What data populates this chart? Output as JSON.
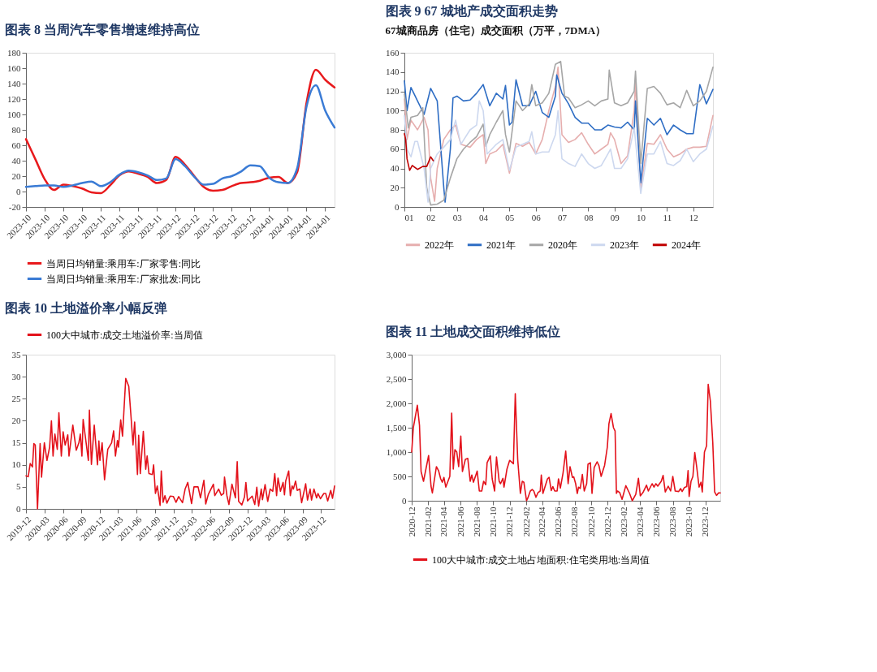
{
  "chart_data": [
    {
      "type": "line",
      "title": "图表 8   当周汽车零售增速维持高位",
      "categories": [
        "2023-10",
        null,
        "2023-10",
        null,
        "2023-10",
        null,
        "2023-10",
        null,
        "2023-11",
        null,
        "2023-11",
        null,
        "2023-11",
        null,
        "2023-11",
        null,
        "2023-12",
        null,
        "2023-12",
        null,
        "2023-12",
        null,
        "2023-12",
        null,
        "2023-12",
        null,
        "2024-01",
        null,
        "2024-01",
        null,
        "2024-01",
        null,
        "2024-01",
        null
      ],
      "series": [
        {
          "name": "当周日均销量:乘用车:厂家零售:同比",
          "color": "#e8191c",
          "values": [
            68,
            42,
            16,
            2,
            9,
            7,
            4,
            -1,
            -2,
            8,
            21,
            26,
            23,
            19,
            11,
            15,
            45,
            35,
            20,
            6,
            1,
            2,
            7,
            11,
            12,
            14,
            18,
            19,
            11,
            25,
            115,
            158,
            145,
            135
          ]
        },
        {
          "name": "当周日均销量:乘用车:厂家批发:同比",
          "color": "#3a7bd5",
          "values": [
            6,
            7,
            8,
            8,
            6,
            8,
            11,
            13,
            7,
            12,
            22,
            27,
            25,
            21,
            15,
            17,
            42,
            33,
            19,
            9,
            10,
            17,
            20,
            26,
            34,
            33,
            18,
            12,
            11,
            30,
            110,
            138,
            105,
            83
          ]
        }
      ],
      "ylim": [
        -20,
        180
      ],
      "yticks": [
        -20,
        0,
        20,
        40,
        60,
        80,
        100,
        120,
        140,
        160,
        180
      ],
      "grid": false,
      "legend": "bottom"
    },
    {
      "type": "line",
      "title": "图表 9   67 城地产成交面积走势",
      "subtitle": "67城商品房（住宅）成交面积（万平，7DMA）",
      "series": [
        {
          "name": "2022年",
          "color": "#e6aeae",
          "x": [
            1.0,
            1.1,
            1.25,
            1.5,
            1.75,
            1.9,
            2.0,
            2.15,
            2.25,
            2.5,
            2.75,
            2.95,
            3.15,
            3.5,
            3.75,
            4.0,
            4.1,
            4.25,
            4.5,
            4.75,
            5.0,
            5.25,
            5.5,
            5.75,
            6.0,
            6.25,
            6.5,
            6.75,
            6.85,
            7.0,
            7.25,
            7.5,
            7.75,
            8.0,
            8.25,
            8.5,
            8.75,
            8.85,
            9.0,
            9.25,
            9.5,
            9.75,
            9.8,
            10.0,
            10.25,
            10.5,
            10.75,
            11.0,
            11.25,
            11.5,
            11.75,
            12.0,
            12.25,
            12.5,
            12.75
          ],
          "values": [
            112,
            70,
            90,
            80,
            93,
            80,
            30,
            6,
            40,
            70,
            80,
            85,
            65,
            62,
            70,
            75,
            45,
            55,
            58,
            65,
            35,
            66,
            63,
            67,
            55,
            70,
            100,
            125,
            145,
            75,
            67,
            70,
            77,
            65,
            55,
            60,
            65,
            77,
            70,
            45,
            53,
            100,
            130,
            19,
            66,
            65,
            75,
            60,
            52,
            55,
            60,
            62,
            62,
            63,
            95
          ]
        },
        {
          "name": "2021年",
          "color": "#2e6dc4",
          "x": [
            1.0,
            1.1,
            1.25,
            1.5,
            1.75,
            2.0,
            2.25,
            2.5,
            2.55,
            2.75,
            2.85,
            3.0,
            3.25,
            3.5,
            3.75,
            4.0,
            4.25,
            4.5,
            4.75,
            4.85,
            5.0,
            5.1,
            5.25,
            5.5,
            5.75,
            6.0,
            6.25,
            6.5,
            6.75,
            6.8,
            7.0,
            7.25,
            7.5,
            7.75,
            8.0,
            8.25,
            8.5,
            8.75,
            9.0,
            9.25,
            9.5,
            9.75,
            9.8,
            10.0,
            10.25,
            10.5,
            10.75,
            11.0,
            11.25,
            11.5,
            11.75,
            12.0,
            12.25,
            12.5,
            12.75
          ],
          "values": [
            131,
            100,
            124,
            110,
            96,
            123,
            110,
            20,
            5,
            60,
            113,
            115,
            110,
            111,
            118,
            127,
            105,
            118,
            112,
            126,
            85,
            88,
            132,
            105,
            105,
            120,
            98,
            93,
            115,
            137,
            118,
            107,
            93,
            87,
            87,
            80,
            80,
            85,
            83,
            82,
            88,
            80,
            110,
            25,
            92,
            85,
            92,
            75,
            85,
            80,
            76,
            76,
            127,
            107,
            122
          ]
        },
        {
          "name": "2020年",
          "color": "#a6a6a6",
          "x": [
            1.0,
            1.15,
            1.25,
            1.5,
            1.7,
            1.85,
            2.0,
            2.25,
            2.5,
            2.75,
            3.0,
            3.25,
            3.5,
            3.75,
            4.0,
            4.1,
            4.25,
            4.5,
            4.75,
            4.85,
            5.0,
            5.25,
            5.5,
            5.75,
            5.85,
            6.0,
            6.25,
            6.5,
            6.75,
            6.95,
            7.1,
            7.25,
            7.5,
            7.75,
            8.0,
            8.25,
            8.5,
            8.75,
            8.8,
            9.0,
            9.25,
            9.5,
            9.75,
            9.8,
            10.0,
            10.25,
            10.5,
            10.75,
            11.0,
            11.25,
            11.5,
            11.75,
            12.0,
            12.25,
            12.5,
            12.75
          ],
          "values": [
            117,
            82,
            93,
            95,
            103,
            20,
            2,
            3,
            7,
            30,
            50,
            60,
            67,
            73,
            86,
            63,
            75,
            88,
            100,
            75,
            57,
            110,
            100,
            107,
            127,
            105,
            108,
            118,
            148,
            151,
            115,
            113,
            103,
            106,
            110,
            105,
            110,
            112,
            142,
            108,
            105,
            108,
            120,
            141,
            45,
            123,
            125,
            118,
            106,
            108,
            103,
            121,
            105,
            110,
            120,
            145
          ]
        },
        {
          "name": "2023年",
          "color": "#cdd8ef",
          "x": [
            1.0,
            1.1,
            1.25,
            1.4,
            1.5,
            1.75,
            1.9,
            2.0,
            2.25,
            2.5,
            2.75,
            2.95,
            3.15,
            3.5,
            3.75,
            3.85,
            4.0,
            4.15,
            4.5,
            4.75,
            5.0,
            5.25,
            5.5,
            5.75,
            5.85,
            6.0,
            6.25,
            6.5,
            6.75,
            6.85,
            7.0,
            7.25,
            7.5,
            7.75,
            8.0,
            8.25,
            8.5,
            8.75,
            8.85,
            9.0,
            9.25,
            9.5,
            9.75,
            10.0,
            10.25,
            10.5,
            10.75,
            11.0,
            11.25,
            11.5,
            11.75,
            12.0,
            12.25,
            12.5,
            12.75
          ],
          "values": [
            95,
            60,
            52,
            68,
            68,
            40,
            5,
            40,
            55,
            62,
            70,
            90,
            65,
            80,
            85,
            110,
            100,
            55,
            65,
            70,
            38,
            62,
            65,
            68,
            78,
            55,
            57,
            57,
            75,
            100,
            50,
            45,
            42,
            55,
            45,
            40,
            43,
            55,
            60,
            40,
            40,
            50,
            82,
            14,
            55,
            55,
            68,
            45,
            43,
            48,
            60,
            47,
            55,
            60,
            84
          ]
        },
        {
          "name": "2024年",
          "color": "#c00000",
          "x": [
            1.0,
            1.05,
            1.1,
            1.2,
            1.3,
            1.5,
            1.7,
            1.85,
            2.0,
            2.1
          ],
          "values": [
            76,
            70,
            50,
            38,
            43,
            39,
            42,
            42,
            52,
            48
          ]
        }
      ],
      "xlim": [
        1,
        12.75
      ],
      "xticks": [
        {
          "value": 1,
          "label": "01"
        },
        {
          "value": 2,
          "label": "02"
        },
        {
          "value": 3,
          "label": "03"
        },
        {
          "value": 4,
          "label": "04"
        },
        {
          "value": 5,
          "label": "05"
        },
        {
          "value": 6,
          "label": "06"
        },
        {
          "value": 7,
          "label": "07"
        },
        {
          "value": 8,
          "label": "08"
        },
        {
          "value": 9,
          "label": "09"
        },
        {
          "value": 10,
          "label": "10"
        },
        {
          "value": 11,
          "label": "11"
        },
        {
          "value": 12,
          "label": "12"
        }
      ],
      "ylim": [
        0,
        160
      ],
      "yticks": [
        0,
        20,
        40,
        60,
        80,
        100,
        120,
        140,
        160
      ],
      "grid": false,
      "legend": "bottom"
    },
    {
      "type": "line",
      "title": "图表 10   土地溢价率小幅反弹",
      "series": [
        {
          "name": "100大中城市:成交土地溢价率:当周值",
          "color": "#e3121b",
          "x": [
            "2019-12-01",
            "2019-12-12",
            "2019-12-22",
            "2020-01-02",
            "2020-01-09",
            "2020-01-16",
            "2020-01-27",
            "2020-02-09",
            "2020-02-16",
            "2020-03-01",
            "2020-03-14",
            "2020-03-27",
            "2020-04-05",
            "2020-04-13",
            "2020-04-22",
            "2020-05-04",
            "2020-05-12",
            "2020-05-24",
            "2020-06-02",
            "2020-06-12",
            "2020-06-25",
            "2020-07-01",
            "2020-07-20",
            "2020-08-06",
            "2020-08-19",
            "2020-08-26",
            "2020-09-03",
            "2020-09-09",
            "2020-10-05",
            "2020-10-10",
            "2020-10-20",
            "2020-11-03",
            "2020-11-19",
            "2020-11-26",
            "2020-12-01",
            "2020-12-12",
            "2020-12-24",
            "2021-01-09",
            "2021-01-28",
            "2021-02-07",
            "2021-02-16",
            "2021-02-26",
            "2021-03-03",
            "2021-03-14",
            "2021-03-23",
            "2021-04-08",
            "2021-04-23",
            "2021-05-04",
            "2021-05-14",
            "2021-05-22",
            "2021-06-05",
            "2021-06-11",
            "2021-06-19",
            "2021-07-04",
            "2021-07-16",
            "2021-07-23",
            "2021-08-01",
            "2021-08-18",
            "2021-08-24",
            "2021-09-02",
            "2021-09-11",
            "2021-09-25",
            "2021-10-01",
            "2021-10-10",
            "2021-10-19",
            "2021-10-29",
            "2021-11-14",
            "2021-11-30",
            "2021-12-13",
            "2021-12-26",
            "2022-01-14",
            "2022-01-27",
            "2022-02-09",
            "2022-02-28",
            "2022-03-12",
            "2022-04-01",
            "2022-04-13",
            "2022-04-30",
            "2022-05-09",
            "2022-05-22",
            "2022-06-16",
            "2022-06-23",
            "2022-07-12",
            "2022-07-25",
            "2022-08-06",
            "2022-08-10",
            "2022-08-22",
            "2022-09-01",
            "2022-09-16",
            "2022-10-03",
            "2022-10-12",
            "2022-10-19",
            "2022-11-04",
            "2022-11-17",
            "2022-11-24",
            "2022-12-02",
            "2022-12-25",
            "2023-01-07",
            "2023-01-17",
            "2023-01-26",
            "2023-02-08",
            "2023-02-14",
            "2023-02-27",
            "2023-03-12",
            "2023-03-24",
            "2023-04-06",
            "2023-04-16",
            "2023-04-25",
            "2023-05-02",
            "2023-05-14",
            "2023-05-27",
            "2023-06-03",
            "2023-06-09",
            "2023-06-24",
            "2023-07-02",
            "2023-07-11",
            "2023-07-17",
            "2023-07-28",
            "2023-08-05",
            "2023-08-18",
            "2023-08-27",
            "2023-09-16",
            "2023-09-25",
            "2023-10-08",
            "2023-10-15",
            "2023-10-27",
            "2023-11-09",
            "2023-11-16",
            "2023-11-28",
            "2023-12-15",
            "2023-12-24",
            "2024-01-03",
            "2024-01-18",
            "2024-01-27",
            "2024-02-06"
          ],
          "values": [
            7.5,
            7.3,
            10.3,
            9.5,
            14.8,
            14.5,
            0,
            14.8,
            7.2,
            15,
            11,
            14,
            20,
            12,
            17,
            13.5,
            21.8,
            12,
            17.5,
            14.5,
            16.8,
            12,
            19,
            13.3,
            15,
            17,
            12,
            20.3,
            11,
            22.4,
            10.1,
            19,
            10,
            15.4,
            11,
            15,
            6.6,
            13.5,
            15,
            17.7,
            12,
            15.5,
            14,
            20.2,
            16.5,
            29.6,
            27.8,
            21,
            14.5,
            19.7,
            7.8,
            16.7,
            8,
            17.6,
            9,
            12,
            8,
            7.8,
            10,
            3.5,
            5.2,
            0.8,
            8.6,
            1.5,
            3,
            1.3,
            2.9,
            2.8,
            1.5,
            2.8,
            1.4,
            4.5,
            6,
            1.2,
            5,
            5,
            2.5,
            6.5,
            1.1,
            3.3,
            5.6,
            3,
            4.5,
            3.1,
            3.5,
            7.2,
            3,
            1,
            5.6,
            2.5,
            10.7,
            1.7,
            0.9,
            2.7,
            6,
            1.8,
            2.9,
            1,
            4.9,
            0.6,
            4.5,
            2.1,
            5.5,
            1.7,
            4.5,
            4,
            8,
            3,
            7,
            4,
            6,
            3.2,
            6.3,
            8.6,
            3,
            5.2,
            4.5,
            6.3,
            4.2,
            4.5,
            1.4,
            5.7,
            2,
            4.5,
            2,
            4.5,
            2.5,
            3.5,
            2.3,
            3.5,
            3.5,
            1.8,
            4.2,
            2.4,
            5.2
          ]
        }
      ],
      "xlim": [
        "2019-12-01",
        "2024-02-06"
      ],
      "xticks": [
        "2019-12",
        "2020-03",
        "2020-06",
        "2020-09",
        "2020-12",
        "2021-03",
        "2021-06",
        "2021-09",
        "2021-12",
        "2022-03",
        "2022-06",
        "2022-09",
        "2022-12",
        "2023-03",
        "2023-06",
        "2023-09",
        "2023-12"
      ],
      "ylim": [
        0,
        35
      ],
      "yticks": [
        0,
        5,
        10,
        15,
        20,
        25,
        30,
        35
      ],
      "grid": false,
      "legend": "top"
    },
    {
      "type": "line",
      "title": "图表 11   土地成交面积维持低位",
      "series": [
        {
          "name": "100大中城市:成交土地占地面积:住宅类用地:当周值",
          "color": "#e3121b",
          "x": [
            "2020-12-01",
            "2020-12-07",
            "2020-12-22",
            "2020-12-30",
            "2021-01-05",
            "2021-01-14",
            "2021-02-02",
            "2021-02-11",
            "2021-02-16",
            "2021-03-03",
            "2021-03-11",
            "2021-03-19",
            "2021-03-25",
            "2021-03-31",
            "2021-04-07",
            "2021-04-22",
            "2021-04-29",
            "2021-05-05",
            "2021-05-11",
            "2021-05-18",
            "2021-05-25",
            "2021-06-02",
            "2021-06-08",
            "2021-06-19",
            "2021-06-28",
            "2021-07-07",
            "2021-07-13",
            "2021-07-19",
            "2021-08-02",
            "2021-08-10",
            "2021-08-19",
            "2021-08-26",
            "2021-09-03",
            "2021-09-08",
            "2021-09-20",
            "2021-09-27",
            "2021-10-06",
            "2021-10-13",
            "2021-10-23",
            "2021-10-28",
            "2021-11-06",
            "2021-11-10",
            "2021-11-21",
            "2021-12-01",
            "2021-12-15",
            "2021-12-22",
            "2021-12-31",
            "2022-01-10",
            "2022-01-17",
            "2022-01-23",
            "2022-02-02",
            "2022-02-07",
            "2022-02-16",
            "2022-02-23",
            "2022-03-01",
            "2022-03-09",
            "2022-03-17",
            "2022-03-25",
            "2022-03-29",
            "2022-04-04",
            "2022-04-21",
            "2022-04-27",
            "2022-05-05",
            "2022-05-11",
            "2022-05-18",
            "2022-05-27",
            "2022-06-01",
            "2022-06-08",
            "2022-06-18",
            "2022-06-28",
            "2022-07-07",
            "2022-07-14",
            "2022-07-23",
            "2022-07-28",
            "2022-08-04",
            "2022-08-10",
            "2022-08-15",
            "2022-08-21",
            "2022-08-29",
            "2022-09-05",
            "2022-09-14",
            "2022-09-19",
            "2022-09-28",
            "2022-10-04",
            "2022-10-12",
            "2022-10-23",
            "2022-10-30",
            "2022-11-07",
            "2022-11-20",
            "2022-11-30",
            "2022-12-06",
            "2022-12-14",
            "2022-12-23",
            "2022-12-29",
            "2023-01-03",
            "2023-01-07",
            "2023-01-15",
            "2023-01-24",
            "2023-02-07",
            "2023-02-21",
            "2023-03-03",
            "2023-03-16",
            "2023-03-26",
            "2023-04-02",
            "2023-04-13",
            "2023-04-25",
            "2023-05-02",
            "2023-05-16",
            "2023-05-23",
            "2023-05-30",
            "2023-06-06",
            "2023-06-19",
            "2023-06-26",
            "2023-07-04",
            "2023-07-15",
            "2023-07-24",
            "2023-08-01",
            "2023-08-10",
            "2023-08-23",
            "2023-08-30",
            "2023-09-05",
            "2023-09-13",
            "2023-09-22",
            "2023-09-27",
            "2023-10-01",
            "2023-10-08",
            "2023-10-15",
            "2023-10-22",
            "2023-10-29",
            "2023-11-07",
            "2023-11-14",
            "2023-11-19",
            "2023-11-27",
            "2023-12-05",
            "2023-12-11",
            "2023-12-19",
            "2023-12-28",
            "2024-01-04",
            "2024-01-11",
            "2024-01-18",
            "2024-01-25"
          ],
          "values": [
            1000,
            1500,
            1960,
            1550,
            600,
            400,
            930,
            300,
            160,
            700,
            620,
            450,
            380,
            480,
            280,
            500,
            1800,
            650,
            1050,
            1000,
            700,
            1330,
            600,
            850,
            870,
            400,
            530,
            380,
            610,
            200,
            200,
            400,
            330,
            780,
            920,
            450,
            200,
            900,
            400,
            350,
            460,
            280,
            650,
            830,
            760,
            2200,
            850,
            150,
            400,
            380,
            0,
            60,
            200,
            230,
            200,
            70,
            170,
            200,
            530,
            150,
            450,
            480,
            210,
            290,
            200,
            200,
            450,
            260,
            570,
            1020,
            350,
            700,
            480,
            490,
            350,
            150,
            280,
            250,
            540,
            200,
            350,
            750,
            780,
            150,
            680,
            800,
            720,
            500,
            730,
            1100,
            1580,
            1790,
            1500,
            1430,
            150,
            200,
            170,
            30,
            310,
            150,
            0,
            130,
            460,
            100,
            180,
            320,
            200,
            350,
            280,
            350,
            300,
            400,
            520,
            180,
            300,
            200,
            500,
            200,
            190,
            250,
            190,
            270,
            290,
            620,
            90,
            400,
            500,
            990,
            700,
            280,
            380,
            180,
            1000,
            1130,
            2390,
            2050,
            1200,
            180,
            110,
            160,
            160
          ]
        }
      ],
      "xlim": [
        "2020-12-01",
        "2024-01-25"
      ],
      "xticks": [
        "2020-12",
        "2021-02",
        "2021-04",
        "2021-06",
        "2021-08",
        "2021-10",
        "2021-12",
        "2022-02",
        "2022-04",
        "2022-06",
        "2022-08",
        "2022-10",
        "2022-12",
        "2023-02",
        "2023-04",
        "2023-06",
        "2023-08",
        "2023-10",
        "2023-12"
      ],
      "ylim": [
        0,
        3000
      ],
      "yticks": [
        0,
        500,
        {
          "value": 1000,
          "label": "1,000"
        },
        {
          "value": 1500,
          "label": "1,500"
        },
        {
          "value": 2000,
          "label": "2,000"
        },
        {
          "value": 2500,
          "label": "2,500"
        },
        {
          "value": 3000,
          "label": "3,000"
        }
      ],
      "grid": false,
      "legend": "bottom"
    }
  ]
}
